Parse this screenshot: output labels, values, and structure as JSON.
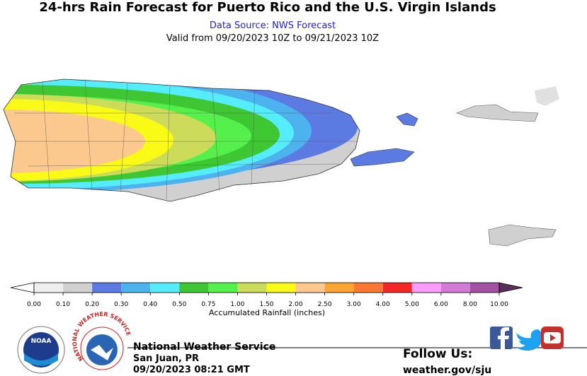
{
  "header": {
    "title": "24-hrs Rain Forecast for Puerto Rico and the U.S. Virgin Islands",
    "source": "Data Source: NWS Forecast",
    "valid": "Valid from 09/20/2023 10Z to 09/21/2023 10Z"
  },
  "legend": {
    "ticks": [
      "0.00",
      "0.10",
      "0.20",
      "0.30",
      "0.40",
      "0.50",
      "0.75",
      "1.00",
      "1.50",
      "2.00",
      "2.50",
      "3.00",
      "4.00",
      "5.00",
      "6.00",
      "8.00",
      "10.00"
    ],
    "colors": [
      "#efefef",
      "#d0d0d0",
      "#5b7be2",
      "#4db3ef",
      "#55ecfb",
      "#3fc733",
      "#55f04c",
      "#cddb5b",
      "#fafa17",
      "#fbc98d",
      "#fba532",
      "#fb7833",
      "#f42727",
      "#fa9cfa",
      "#d27bd6",
      "#a351a3"
    ],
    "under_color": "#ffffff",
    "over_color": "#5a2d5a",
    "label": "Accumulated Rainfall (inches)"
  },
  "logos": {
    "noaa": "NOAA",
    "nws": "NATIONAL WEATHER SERVICE"
  },
  "footer": {
    "org": "National Weather Service",
    "office": "San Juan, PR",
    "timestamp": "09/20/2023 08:21 GMT",
    "follow": "Follow Us:",
    "url": "weather.gov/sju"
  }
}
